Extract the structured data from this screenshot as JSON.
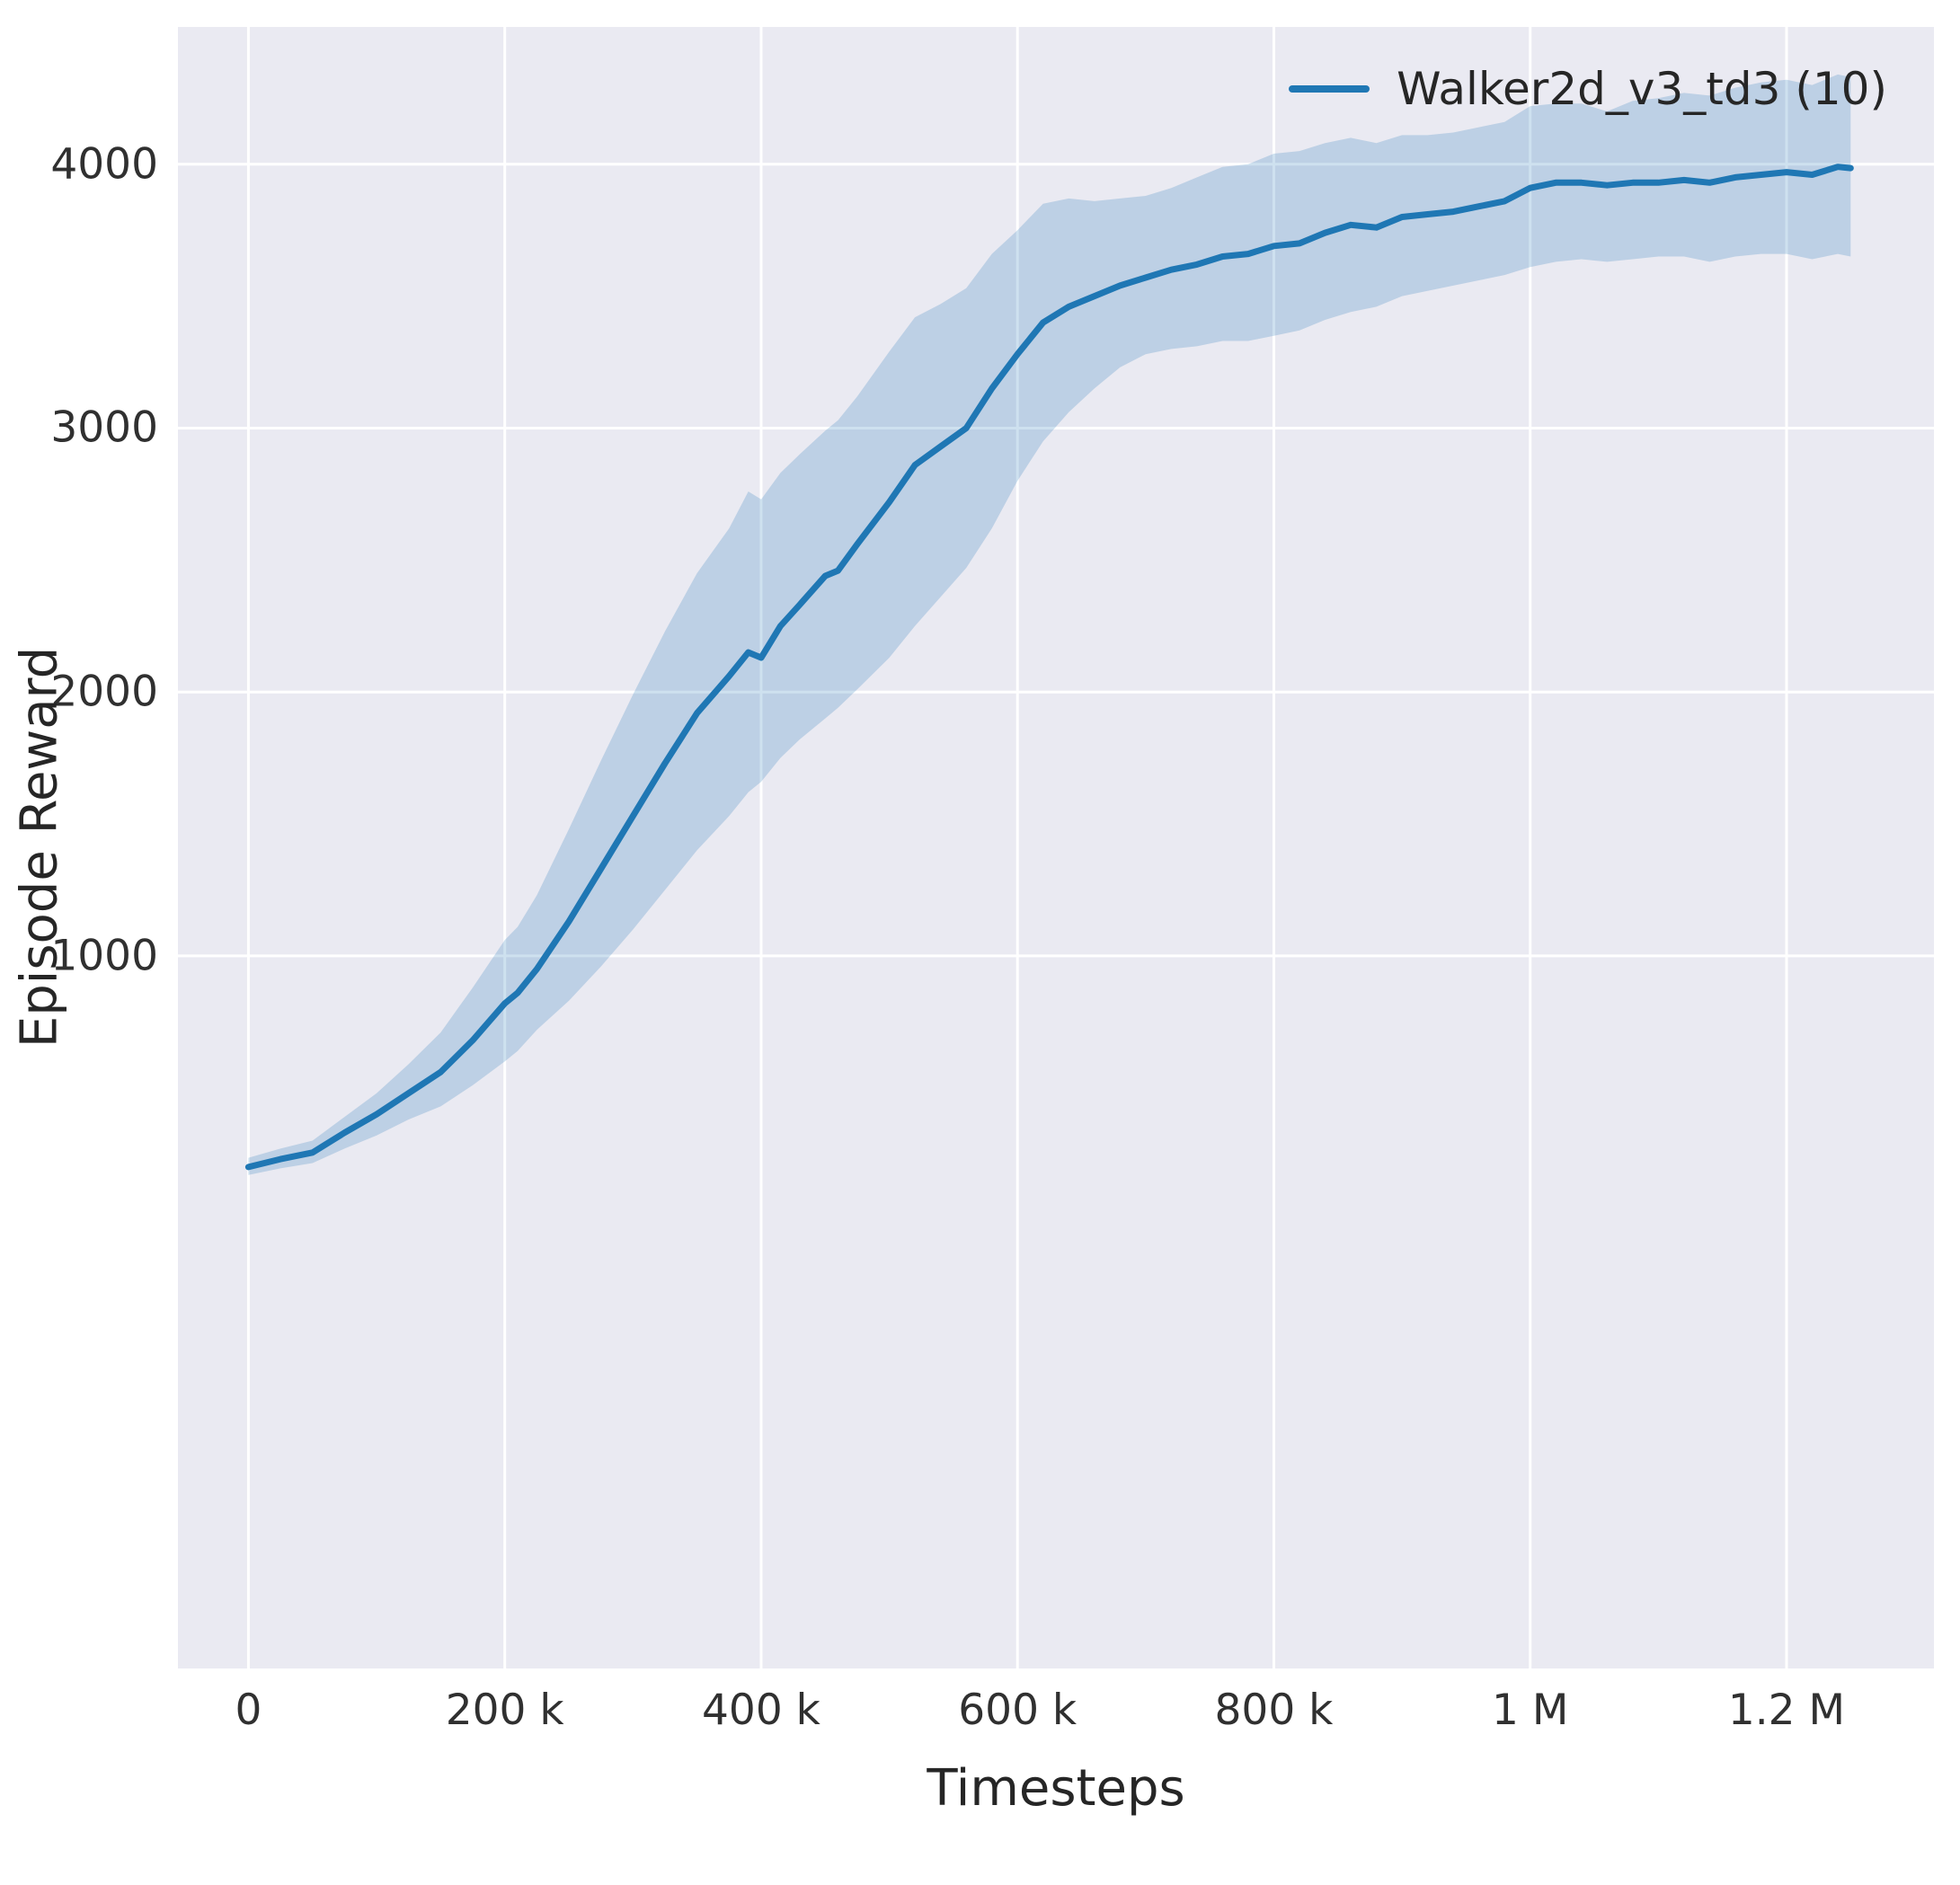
{
  "chart_data": {
    "type": "line",
    "title": "",
    "xlabel": "Timesteps",
    "ylabel": "Episode Reward",
    "xlim": [
      -55000,
      1315000
    ],
    "ylim": [
      -1700,
      4520
    ],
    "grid": true,
    "plot_background": "#eaeaf2",
    "grid_color": "#ffffff",
    "legend_position": "upper right",
    "xticks": {
      "values": [
        0,
        200000,
        400000,
        600000,
        800000,
        1000000,
        1200000
      ],
      "labels": [
        "0",
        "200 k",
        "400 k",
        "600 k",
        "800 k",
        "1 M",
        "1.2 M"
      ]
    },
    "yticks": {
      "values": [
        1000,
        2000,
        3000,
        4000
      ],
      "labels": [
        "1000",
        "2000",
        "3000",
        "4000"
      ]
    },
    "series": [
      {
        "name": "Walker2d_v3_td3 (10)",
        "color": "#1f77b4",
        "band_opacity": 0.22,
        "x": [
          0,
          25000,
          50000,
          75000,
          100000,
          125000,
          150000,
          175000,
          200000,
          210000,
          225000,
          250000,
          275000,
          300000,
          325000,
          350000,
          375000,
          390000,
          400000,
          415000,
          430000,
          450000,
          460000,
          475000,
          500000,
          520000,
          540000,
          560000,
          580000,
          600000,
          620000,
          640000,
          660000,
          680000,
          700000,
          720000,
          740000,
          760000,
          780000,
          800000,
          820000,
          840000,
          860000,
          880000,
          900000,
          920000,
          940000,
          960000,
          980000,
          1000000,
          1020000,
          1040000,
          1060000,
          1080000,
          1100000,
          1120000,
          1140000,
          1160000,
          1180000,
          1200000,
          1220000,
          1240000,
          1250000
        ],
        "mean": [
          200,
          230,
          255,
          330,
          400,
          480,
          560,
          680,
          820,
          860,
          950,
          1130,
          1330,
          1530,
          1730,
          1920,
          2060,
          2150,
          2130,
          2250,
          2330,
          2440,
          2460,
          2560,
          2720,
          2860,
          2930,
          3000,
          3150,
          3280,
          3400,
          3460,
          3500,
          3540,
          3570,
          3600,
          3620,
          3650,
          3660,
          3690,
          3700,
          3740,
          3770,
          3760,
          3800,
          3810,
          3820,
          3840,
          3860,
          3910,
          3930,
          3930,
          3920,
          3930,
          3930,
          3940,
          3930,
          3950,
          3960,
          3970,
          3960,
          3990,
          3985
        ],
        "lower": [
          170,
          195,
          215,
          270,
          320,
          380,
          430,
          510,
          600,
          640,
          720,
          830,
          960,
          1100,
          1250,
          1400,
          1530,
          1620,
          1660,
          1750,
          1820,
          1900,
          1940,
          2010,
          2130,
          2250,
          2360,
          2470,
          2620,
          2800,
          2950,
          3060,
          3150,
          3230,
          3280,
          3300,
          3310,
          3330,
          3330,
          3350,
          3370,
          3410,
          3440,
          3460,
          3500,
          3520,
          3540,
          3560,
          3580,
          3610,
          3630,
          3640,
          3630,
          3640,
          3650,
          3650,
          3630,
          3650,
          3660,
          3660,
          3640,
          3660,
          3650
        ],
        "upper": [
          235,
          270,
          300,
          390,
          480,
          590,
          710,
          880,
          1060,
          1110,
          1230,
          1480,
          1740,
          1990,
          2230,
          2450,
          2620,
          2760,
          2730,
          2830,
          2900,
          2990,
          3030,
          3120,
          3290,
          3420,
          3470,
          3530,
          3660,
          3750,
          3850,
          3870,
          3860,
          3870,
          3880,
          3910,
          3950,
          3990,
          4000,
          4040,
          4050,
          4080,
          4100,
          4080,
          4110,
          4110,
          4120,
          4140,
          4160,
          4220,
          4230,
          4230,
          4200,
          4240,
          4250,
          4270,
          4260,
          4290,
          4310,
          4320,
          4300,
          4340,
          4330
        ]
      }
    ]
  }
}
